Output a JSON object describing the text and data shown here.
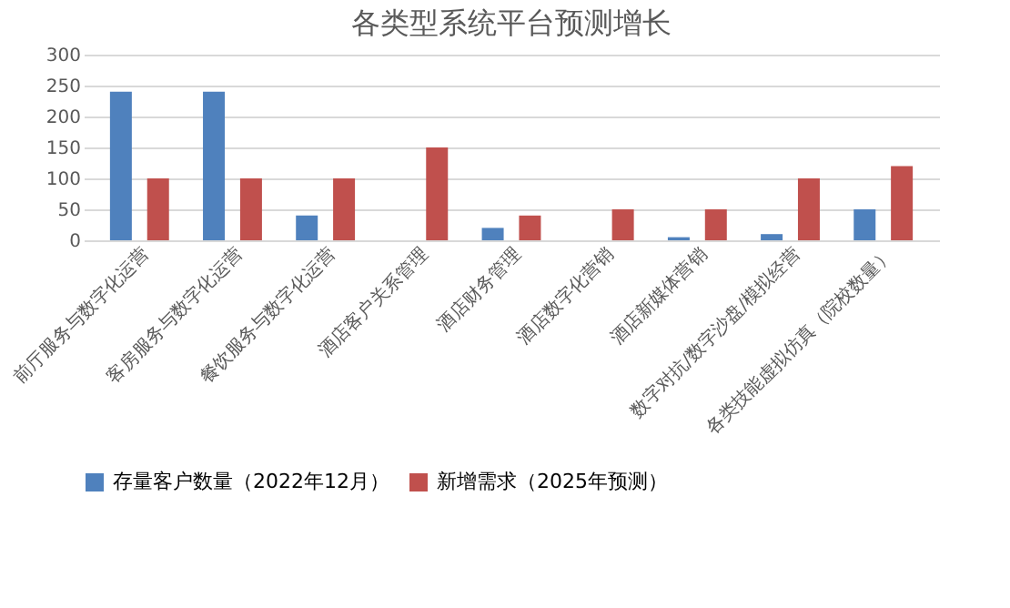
{
  "chart_data": {
    "type": "bar",
    "title": "各类型系统平台预测增长",
    "categories": [
      "前厅服务与数字化运营",
      "客房服务与数字化运营",
      "餐饮服务与数字化运营",
      "酒店客户关系管理",
      "酒店财务管理",
      "酒店数字化营销",
      "酒店新媒体营销",
      "数字对抗/数字沙盘/模拟经营",
      "各类技能虚拟仿真（院校数量）"
    ],
    "series": [
      {
        "name": "存量客户数量（2022年12月）",
        "color": "#4f81bd",
        "values": [
          240,
          240,
          40,
          null,
          20,
          null,
          5,
          10,
          50
        ]
      },
      {
        "name": "新增需求（2025年预测）",
        "color": "#c0504d",
        "values": [
          100,
          100,
          100,
          150,
          40,
          50,
          50,
          100,
          120
        ]
      }
    ],
    "ylim": [
      0,
      300
    ],
    "yticks": [
      0,
      50,
      100,
      150,
      200,
      250,
      300
    ],
    "grid": "y",
    "legend": "bottom"
  }
}
